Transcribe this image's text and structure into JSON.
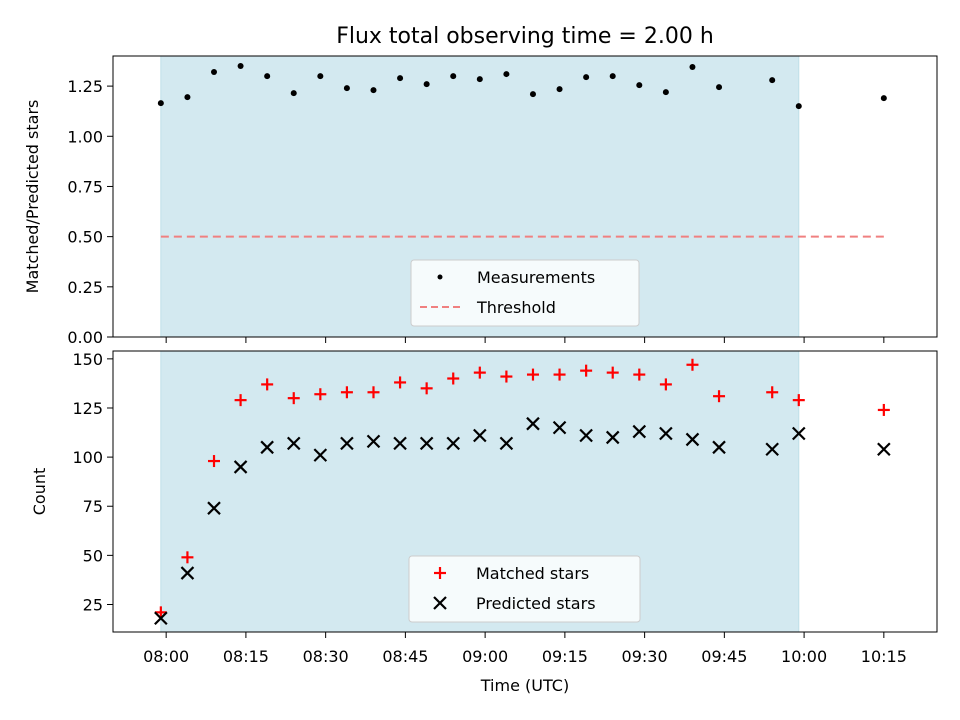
{
  "figure": {
    "title": "Flux total observing time = 2.00 h"
  },
  "colors": {
    "shade": "#d3e9f0",
    "measurement": "#000000",
    "threshold": "#f08080",
    "matched": "#ff0000",
    "predicted": "#000000"
  },
  "chart_data": [
    {
      "type": "scatter",
      "xaxis": "time (UTC)",
      "ylabel": "Matched/Predicted stars",
      "ylim": [
        0,
        1.4
      ],
      "yticks": [
        "0.00",
        "0.25",
        "0.50",
        "0.75",
        "1.00",
        "1.25"
      ],
      "grid": false,
      "legend_position": "lower center",
      "shaded_x_range": [
        "07:59",
        "09:59"
      ],
      "threshold": {
        "name": "Threshold",
        "y": 0.5,
        "x_range": [
          "07:59",
          "10:15"
        ]
      },
      "series": [
        {
          "name": "Measurements",
          "x": [
            "07:59",
            "08:04",
            "08:09",
            "08:14",
            "08:19",
            "08:24",
            "08:29",
            "08:34",
            "08:39",
            "08:44",
            "08:49",
            "08:54",
            "08:59",
            "09:04",
            "09:09",
            "09:14",
            "09:19",
            "09:24",
            "09:29",
            "09:34",
            "09:39",
            "09:44",
            "09:54",
            "09:59",
            "10:15"
          ],
          "values": [
            1.165,
            1.195,
            1.32,
            1.35,
            1.3,
            1.215,
            1.3,
            1.24,
            1.23,
            1.29,
            1.26,
            1.3,
            1.285,
            1.31,
            1.21,
            1.235,
            1.295,
            1.3,
            1.255,
            1.22,
            1.345,
            1.245,
            1.28,
            1.15,
            1.19
          ]
        }
      ]
    },
    {
      "type": "scatter",
      "xlabel": "Time (UTC)",
      "ylabel": "Count",
      "ylim": [
        11,
        154
      ],
      "xticks": [
        "08:00",
        "08:15",
        "08:30",
        "08:45",
        "09:00",
        "09:15",
        "09:30",
        "09:45",
        "10:00",
        "10:15"
      ],
      "yticks": [
        "25",
        "50",
        "75",
        "100",
        "125",
        "150"
      ],
      "grid": false,
      "legend_position": "lower center",
      "shaded_x_range": [
        "07:59",
        "09:59"
      ],
      "series": [
        {
          "name": "Matched stars",
          "marker": "+",
          "x": [
            "07:59",
            "08:04",
            "08:09",
            "08:14",
            "08:19",
            "08:24",
            "08:29",
            "08:34",
            "08:39",
            "08:44",
            "08:49",
            "08:54",
            "08:59",
            "09:04",
            "09:09",
            "09:14",
            "09:19",
            "09:24",
            "09:29",
            "09:34",
            "09:39",
            "09:44",
            "09:54",
            "09:59",
            "10:15"
          ],
          "values": [
            21,
            49,
            98,
            129,
            137,
            130,
            132,
            133,
            133,
            138,
            135,
            140,
            143,
            141,
            142,
            142,
            144,
            143,
            142,
            137,
            147,
            131,
            133,
            129,
            124
          ]
        },
        {
          "name": "Predicted stars",
          "marker": "x",
          "x": [
            "07:59",
            "08:04",
            "08:09",
            "08:14",
            "08:19",
            "08:24",
            "08:29",
            "08:34",
            "08:39",
            "08:44",
            "08:49",
            "08:54",
            "08:59",
            "09:04",
            "09:09",
            "09:14",
            "09:19",
            "09:24",
            "09:29",
            "09:34",
            "09:39",
            "09:44",
            "09:54",
            "09:59",
            "10:15"
          ],
          "values": [
            18,
            41,
            74,
            95,
            105,
            107,
            101,
            107,
            108,
            107,
            107,
            107,
            111,
            107,
            117,
            115,
            111,
            110,
            113,
            112,
            109,
            105,
            104,
            112,
            104
          ]
        }
      ]
    }
  ]
}
